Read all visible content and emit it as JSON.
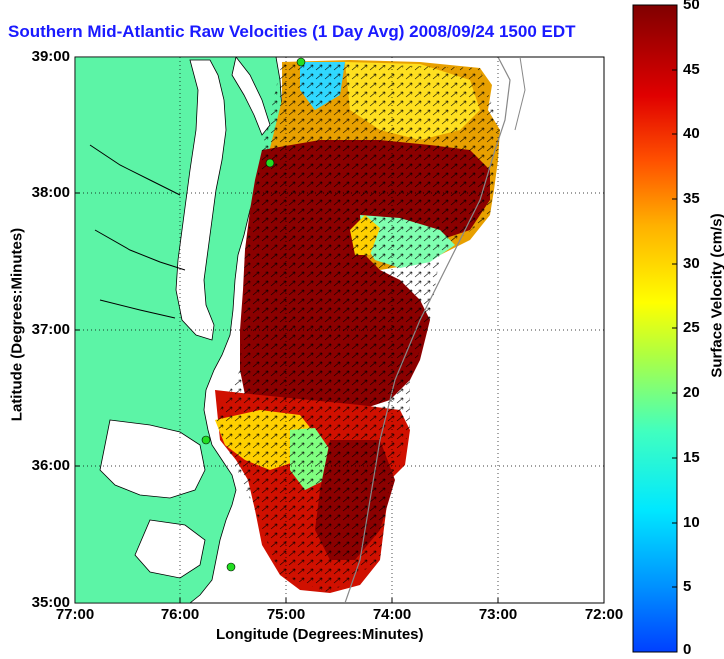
{
  "title": "Southern Mid-Atlantic Raw Velocities (1 Day Avg) 2008/09/24 1500 EDT",
  "axes": {
    "xlabel": "Longitude (Degrees:Minutes)",
    "ylabel": "Latitude (Degrees:Minutes)",
    "xticks": [
      "77:00",
      "76:00",
      "75:00",
      "74:00",
      "73:00",
      "72:00"
    ],
    "yticks": [
      "39:00",
      "38:00",
      "37:00",
      "36:00",
      "35:00"
    ],
    "grid": "dotted"
  },
  "colorbar": {
    "label": "Surface Velocity (cm/s)",
    "ticks": [
      "50",
      "45",
      "40",
      "35",
      "30",
      "25",
      "20",
      "15",
      "10",
      "5",
      "0"
    ],
    "range": [
      0,
      50
    ],
    "colormap": "jet"
  },
  "colors": {
    "land": "#5cf4a6",
    "title": "#1a1aff",
    "station": "#22dd22"
  }
}
